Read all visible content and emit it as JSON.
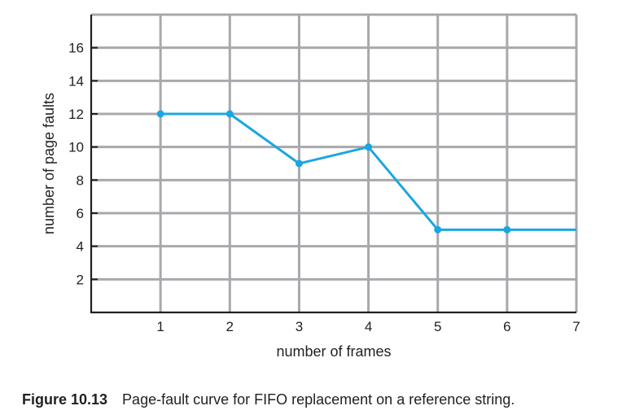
{
  "chart_data": {
    "type": "line",
    "x": [
      1,
      2,
      3,
      4,
      5,
      6,
      7
    ],
    "series": [
      {
        "values": [
          12,
          12,
          9,
          10,
          5,
          5,
          5
        ]
      }
    ],
    "xlabel": "number of frames",
    "ylabel": "number of page faults",
    "xlim": [
      0,
      7
    ],
    "ylim": [
      0,
      18
    ],
    "xticks": [
      1,
      2,
      3,
      4,
      5,
      6,
      7
    ],
    "yticks": [
      2,
      4,
      6,
      8,
      10,
      12,
      14,
      16
    ],
    "grid": true,
    "markers_on": [
      1,
      2,
      3,
      4,
      5,
      6
    ],
    "line_color": "#1aa7e0",
    "grid_color": "#a7a9ac",
    "axis_color": "#231f20"
  },
  "caption": {
    "figure_number": "Figure 10.13",
    "text": "Page-fault curve for FIFO replacement on a reference string."
  }
}
